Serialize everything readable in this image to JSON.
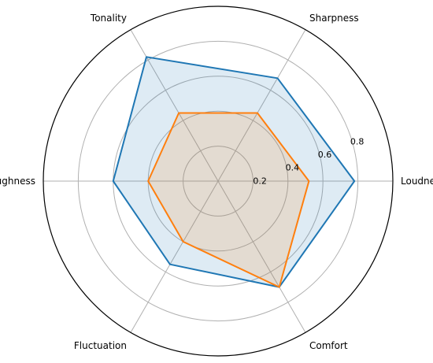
{
  "chart_data": {
    "type": "radar",
    "axes": [
      "Loudness",
      "Sharpness",
      "Tonality",
      "Roughness",
      "Fluctuation",
      "Comfort"
    ],
    "rlim": [
      0,
      1.0
    ],
    "rticks": [
      0.2,
      0.4,
      0.6,
      0.8
    ],
    "rtick_labels": [
      "0.2",
      "0.4",
      "0.6",
      "0.8"
    ],
    "grid": true,
    "series": [
      {
        "values": [
          0.78,
          0.68,
          0.82,
          0.6,
          0.55,
          0.7
        ],
        "color": "#1f77b4",
        "fill": "#1f77b4"
      },
      {
        "values": [
          0.52,
          0.45,
          0.45,
          0.4,
          0.4,
          0.7
        ],
        "color": "#ff7f0e",
        "fill": "#ff7f0e"
      }
    ]
  }
}
